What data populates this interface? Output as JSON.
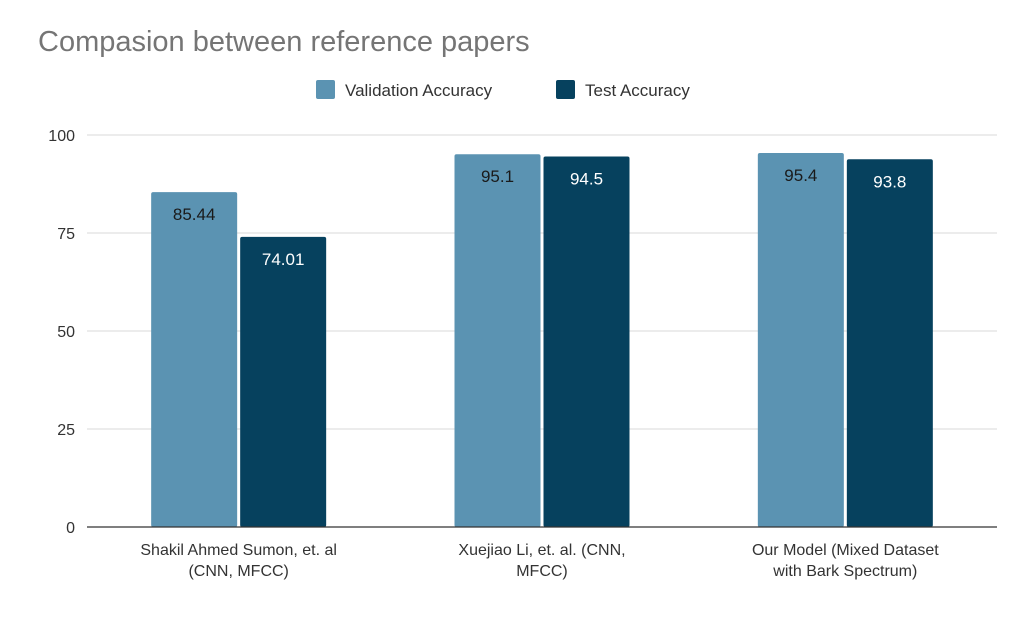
{
  "chart_data": {
    "type": "bar",
    "title": "Compasion between reference papers",
    "xlabel": "",
    "ylabel": "",
    "ylim": [
      0,
      100
    ],
    "yticks": [
      "0",
      "25",
      "50",
      "75",
      "100"
    ],
    "grid": true,
    "legend_position": "top",
    "categories": [
      [
        "Shakil Ahmed Sumon, et. al",
        "(CNN, MFCC)"
      ],
      [
        "Xuejiao Li, et. al. (CNN,",
        "MFCC)"
      ],
      [
        "Our Model (Mixed Dataset",
        "with Bark Spectrum)"
      ]
    ],
    "series": [
      {
        "name": "Validation Accuracy",
        "values": [
          85.44,
          95.1,
          95.4
        ],
        "labels": [
          "85.44",
          "95.1",
          "95.4"
        ],
        "color": "#5b93b2",
        "label_color": "#1a1a1a"
      },
      {
        "name": "Test Accuracy",
        "values": [
          74.01,
          94.5,
          93.8
        ],
        "labels": [
          "74.01",
          "94.5",
          "93.8"
        ],
        "color": "#06415e",
        "label_color": "#ffffff"
      }
    ]
  }
}
